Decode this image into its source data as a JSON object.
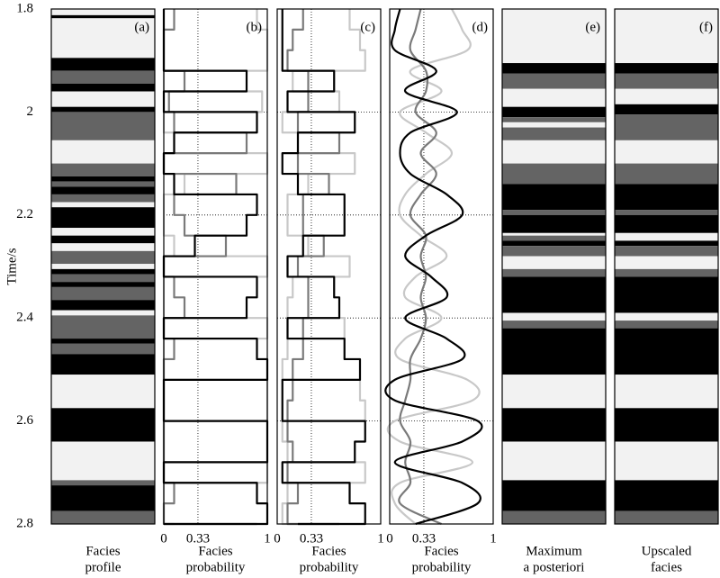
{
  "chart_data": {
    "y_label": "Time/s",
    "ylim": [
      1.8,
      2.8
    ],
    "y_inverted": true,
    "yticks": [
      1.8,
      2,
      2.2,
      2.4,
      2.6,
      2.8
    ],
    "panels": [
      {
        "type": "bands",
        "label": "(a)",
        "xlabel": [
          "Facies",
          "profile"
        ],
        "colors": [
          "#f2f2f2",
          "#646464",
          "#000000"
        ],
        "boundaries": [
          1.8,
          1.812,
          1.818,
          1.895,
          1.92,
          1.945,
          1.96,
          1.99,
          2.0,
          2.055,
          2.1,
          2.125,
          2.135,
          2.145,
          2.16,
          2.175,
          2.185,
          2.225,
          2.24,
          2.255,
          2.27,
          2.295,
          2.305,
          2.315,
          2.33,
          2.34,
          2.365,
          2.385,
          2.395,
          2.44,
          2.45,
          2.47,
          2.51,
          2.575,
          2.64,
          2.715,
          2.725,
          2.775,
          2.8
        ],
        "facies": [
          0,
          2,
          0,
          2,
          1,
          2,
          0,
          2,
          1,
          0,
          1,
          2,
          1,
          2,
          1,
          0,
          2,
          0,
          2,
          0,
          1,
          0,
          2,
          1,
          2,
          1,
          2,
          0,
          1,
          2,
          1,
          2,
          0,
          2,
          0,
          1,
          2,
          1
        ]
      },
      {
        "type": "line",
        "label": "(b)",
        "xlabel": [
          "Facies",
          "probability"
        ],
        "step": true,
        "grid": true,
        "xlim": [
          0,
          1
        ],
        "xticks": [
          0,
          0.33,
          1
        ],
        "time": [
          1.8,
          1.84,
          1.88,
          1.92,
          1.96,
          2.0,
          2.04,
          2.08,
          2.12,
          2.16,
          2.2,
          2.24,
          2.28,
          2.32,
          2.36,
          2.4,
          2.44,
          2.48,
          2.52,
          2.56,
          2.6,
          2.64,
          2.68,
          2.72,
          2.76,
          2.8
        ],
        "series": [
          {
            "color": "#c8c8c8",
            "values": [
              0.9,
              1,
              1,
              0,
              0.95,
              0,
              0.1,
              1,
              0.2,
              0,
              0,
              0.1,
              1,
              0,
              0,
              1,
              0,
              0,
              1,
              1,
              0,
              0,
              1,
              0,
              0,
              0.1
            ]
          },
          {
            "color": "#7a7a7a",
            "values": [
              0.1,
              0,
              0,
              0.2,
              0.05,
              0.1,
              0.8,
              0,
              0.7,
              0.1,
              0.2,
              0.6,
              0,
              0.1,
              0.2,
              0,
              0.1,
              0,
              0,
              0,
              0,
              0,
              0,
              0.1,
              0,
              0.9
            ]
          },
          {
            "color": "#000000",
            "values": [
              0,
              0,
              0,
              0.8,
              0,
              0.9,
              0.1,
              0,
              0.1,
              0.9,
              0.8,
              0.3,
              0,
              0.9,
              0.8,
              0,
              0.9,
              1,
              0,
              0,
              1,
              1,
              0,
              0.9,
              1,
              0
            ]
          }
        ]
      },
      {
        "type": "line",
        "label": "(c)",
        "xlabel": [
          "Facies",
          "probability"
        ],
        "step": true,
        "grid": true,
        "xlim": [
          0,
          1
        ],
        "xticks": [
          0,
          0.33,
          1
        ],
        "time": [
          1.8,
          1.84,
          1.88,
          1.92,
          1.96,
          2.0,
          2.04,
          2.08,
          2.12,
          2.16,
          2.2,
          2.24,
          2.28,
          2.32,
          2.36,
          2.4,
          2.44,
          2.48,
          2.52,
          2.56,
          2.6,
          2.64,
          2.68,
          2.72,
          2.76,
          2.8
        ],
        "series": [
          {
            "color": "#c8c8c8",
            "values": [
              0.7,
              0.8,
              0.85,
              0.15,
              0.6,
              0.05,
              0.2,
              0.75,
              0.3,
              0.1,
              0.1,
              0.3,
              0.7,
              0.15,
              0.1,
              0.65,
              0.1,
              0.05,
              0.8,
              0.85,
              0.05,
              0.1,
              0.85,
              0.1,
              0.05,
              0.2
            ]
          },
          {
            "color": "#7a7a7a",
            "values": [
              0.25,
              0.15,
              0.1,
              0.3,
              0.3,
              0.2,
              0.6,
              0.2,
              0.5,
              0.25,
              0.25,
              0.45,
              0.2,
              0.3,
              0.3,
              0.25,
              0.25,
              0.15,
              0.15,
              0.1,
              0.1,
              0.15,
              0.1,
              0.2,
              0.1,
              0.6
            ]
          },
          {
            "color": "#000000",
            "values": [
              0.05,
              0.05,
              0.05,
              0.55,
              0.1,
              0.75,
              0.2,
              0.05,
              0.2,
              0.65,
              0.65,
              0.25,
              0.1,
              0.55,
              0.6,
              0.1,
              0.65,
              0.8,
              0.05,
              0.05,
              0.85,
              0.75,
              0.05,
              0.7,
              0.85,
              0.2
            ]
          }
        ]
      },
      {
        "type": "line",
        "label": "(d)",
        "xlabel": [
          "Facies",
          "probability"
        ],
        "step": false,
        "grid": true,
        "xlim": [
          0,
          1
        ],
        "xticks": [
          0,
          0.33,
          1
        ],
        "time": [
          1.8,
          1.84,
          1.88,
          1.92,
          1.96,
          2.0,
          2.04,
          2.08,
          2.12,
          2.16,
          2.2,
          2.24,
          2.28,
          2.32,
          2.36,
          2.4,
          2.44,
          2.48,
          2.52,
          2.56,
          2.6,
          2.64,
          2.68,
          2.72,
          2.76,
          2.8
        ],
        "series": [
          {
            "color": "#c8c8c8",
            "values": [
              0.6,
              0.7,
              0.75,
              0.2,
              0.5,
              0.1,
              0.35,
              0.6,
              0.35,
              0.15,
              0.1,
              0.3,
              0.55,
              0.25,
              0.15,
              0.5,
              0.15,
              0.1,
              0.75,
              0.8,
              0.05,
              0.1,
              0.8,
              0.1,
              0.05,
              0.25
            ]
          },
          {
            "color": "#7a7a7a",
            "values": [
              0.3,
              0.25,
              0.2,
              0.35,
              0.35,
              0.25,
              0.45,
              0.3,
              0.45,
              0.3,
              0.2,
              0.35,
              0.3,
              0.35,
              0.3,
              0.35,
              0.3,
              0.2,
              0.2,
              0.15,
              0.1,
              0.2,
              0.15,
              0.2,
              0.1,
              0.5
            ]
          },
          {
            "color": "#000000",
            "values": [
              0.1,
              0.05,
              0.05,
              0.45,
              0.15,
              0.65,
              0.2,
              0.1,
              0.2,
              0.55,
              0.7,
              0.35,
              0.15,
              0.4,
              0.55,
              0.15,
              0.55,
              0.7,
              0.05,
              0.05,
              0.85,
              0.7,
              0.05,
              0.7,
              0.85,
              0.25
            ]
          }
        ]
      },
      {
        "type": "bands",
        "label": "(e)",
        "xlabel": [
          "Maximum",
          "a posteriori"
        ],
        "colors": [
          "#f2f2f2",
          "#646464",
          "#000000"
        ],
        "boundaries": [
          1.8,
          1.905,
          1.925,
          1.955,
          1.99,
          2.01,
          2.02,
          2.03,
          2.055,
          2.1,
          2.14,
          2.19,
          2.2,
          2.235,
          2.24,
          2.25,
          2.26,
          2.28,
          2.305,
          2.32,
          2.39,
          2.405,
          2.42,
          2.51,
          2.575,
          2.64,
          2.715,
          2.775,
          2.8
        ],
        "facies": [
          0,
          2,
          1,
          0,
          2,
          1,
          0,
          1,
          0,
          1,
          2,
          1,
          2,
          0,
          1,
          2,
          1,
          0,
          1,
          2,
          0,
          1,
          2,
          0,
          2,
          0,
          2,
          1
        ]
      },
      {
        "type": "bands",
        "label": "(f)",
        "xlabel": [
          "Upscaled",
          "facies"
        ],
        "colors": [
          "#f2f2f2",
          "#646464",
          "#000000"
        ],
        "boundaries": [
          1.8,
          1.905,
          1.925,
          1.955,
          1.985,
          2.005,
          2.055,
          2.1,
          2.14,
          2.19,
          2.2,
          2.235,
          2.25,
          2.26,
          2.28,
          2.305,
          2.32,
          2.39,
          2.405,
          2.42,
          2.51,
          2.575,
          2.64,
          2.715,
          2.775,
          2.8
        ],
        "facies": [
          0,
          2,
          1,
          0,
          2,
          1,
          0,
          1,
          2,
          1,
          2,
          0,
          2,
          1,
          0,
          1,
          2,
          0,
          1,
          2,
          0,
          2,
          0,
          2,
          1
        ]
      }
    ]
  }
}
